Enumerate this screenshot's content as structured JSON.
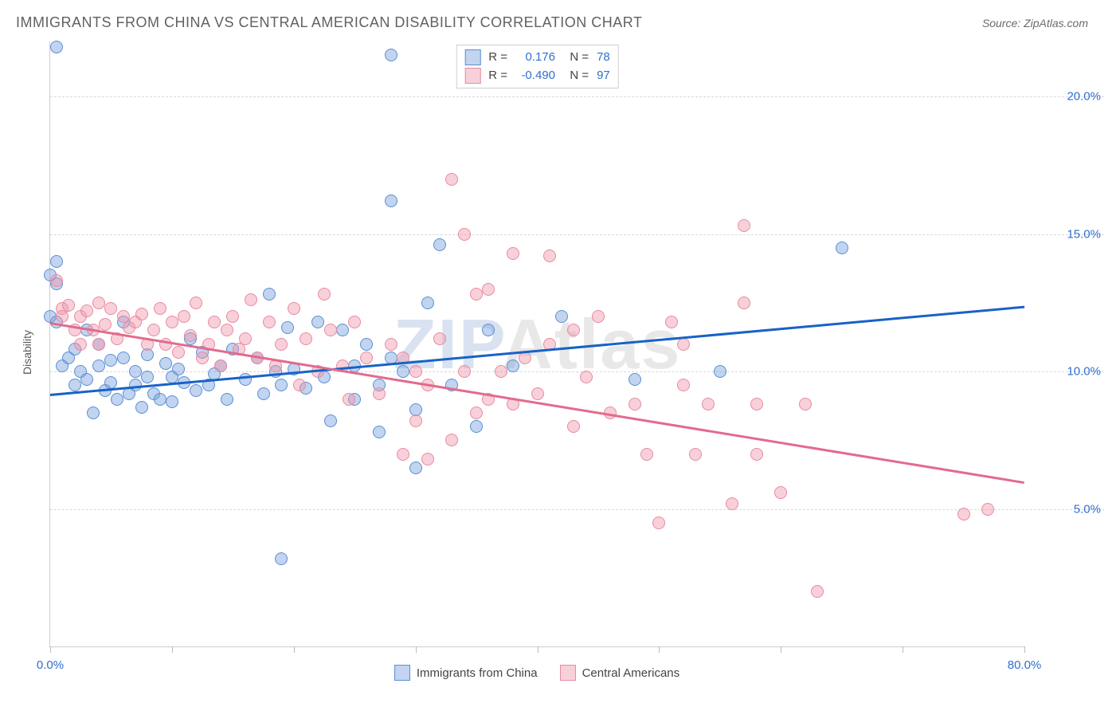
{
  "title": "IMMIGRANTS FROM CHINA VS CENTRAL AMERICAN DISABILITY CORRELATION CHART",
  "source": "Source: ZipAtlas.com",
  "ylabel": "Disability",
  "watermark": {
    "z": "ZIP",
    "rest": "Atlas"
  },
  "chart": {
    "type": "scatter",
    "xlim": [
      0,
      80
    ],
    "ylim": [
      0,
      22
    ],
    "yticks": [
      {
        "v": 5,
        "label": "5.0%"
      },
      {
        "v": 10,
        "label": "10.0%"
      },
      {
        "v": 15,
        "label": "15.0%"
      },
      {
        "v": 20,
        "label": "20.0%"
      }
    ],
    "xtick_positions": [
      0,
      10,
      20,
      30,
      40,
      50,
      60,
      70,
      80
    ],
    "xtick_labels": [
      {
        "v": 0,
        "label": "0.0%"
      },
      {
        "v": 80,
        "label": "80.0%"
      }
    ],
    "xtick_label_color": "#2f6fd0",
    "ytick_label_color": "#2f6fd0",
    "grid_color": "#d9d9d9",
    "background_color": "#ffffff",
    "marker_radius": 8,
    "marker_stroke_width": 1.2,
    "series": [
      {
        "name": "Immigrants from China",
        "color_fill": "rgba(120,160,220,0.45)",
        "color_stroke": "#5a8fd6",
        "trend_color": "#1862c7",
        "trend": {
          "x1": 0,
          "y1": 9.2,
          "x2": 80,
          "y2": 12.4
        },
        "stats": {
          "R": "0.176",
          "N": "78"
        },
        "points": [
          [
            0,
            12.0
          ],
          [
            0,
            13.5
          ],
          [
            0.5,
            13.2
          ],
          [
            0.5,
            11.8
          ],
          [
            0.5,
            21.8
          ],
          [
            28,
            21.5
          ],
          [
            1,
            10.2
          ],
          [
            1.5,
            10.5
          ],
          [
            2,
            9.5
          ],
          [
            2,
            10.8
          ],
          [
            2.5,
            10.0
          ],
          [
            3,
            11.5
          ],
          [
            3,
            9.7
          ],
          [
            3.5,
            8.5
          ],
          [
            4,
            10.2
          ],
          [
            4,
            11.0
          ],
          [
            4.5,
            9.3
          ],
          [
            5,
            9.6
          ],
          [
            5,
            10.4
          ],
          [
            5.5,
            9.0
          ],
          [
            6,
            10.5
          ],
          [
            6,
            11.8
          ],
          [
            6.5,
            9.2
          ],
          [
            7,
            9.5
          ],
          [
            7,
            10.0
          ],
          [
            7.5,
            8.7
          ],
          [
            8,
            9.8
          ],
          [
            8,
            10.6
          ],
          [
            8.5,
            9.2
          ],
          [
            9,
            9.0
          ],
          [
            9.5,
            10.3
          ],
          [
            10,
            9.8
          ],
          [
            10,
            8.9
          ],
          [
            10.5,
            10.1
          ],
          [
            11,
            9.6
          ],
          [
            11.5,
            11.2
          ],
          [
            12,
            9.3
          ],
          [
            12.5,
            10.7
          ],
          [
            13,
            9.5
          ],
          [
            13.5,
            9.9
          ],
          [
            14,
            10.2
          ],
          [
            14.5,
            9.0
          ],
          [
            15,
            10.8
          ],
          [
            16,
            9.7
          ],
          [
            17,
            10.5
          ],
          [
            17.5,
            9.2
          ],
          [
            18,
            12.8
          ],
          [
            18.5,
            10.0
          ],
          [
            19,
            9.5
          ],
          [
            19.5,
            11.6
          ],
          [
            20,
            10.1
          ],
          [
            19,
            3.2
          ],
          [
            21,
            9.4
          ],
          [
            22,
            11.8
          ],
          [
            22.5,
            9.8
          ],
          [
            23,
            8.2
          ],
          [
            24,
            11.5
          ],
          [
            25,
            10.2
          ],
          [
            25,
            9.0
          ],
          [
            26,
            11.0
          ],
          [
            27,
            9.5
          ],
          [
            27,
            7.8
          ],
          [
            28,
            10.5
          ],
          [
            28,
            16.2
          ],
          [
            29,
            10.0
          ],
          [
            30,
            6.5
          ],
          [
            30,
            8.6
          ],
          [
            31,
            12.5
          ],
          [
            32,
            14.6
          ],
          [
            33,
            9.5
          ],
          [
            35,
            8.0
          ],
          [
            36,
            11.5
          ],
          [
            38,
            10.2
          ],
          [
            42,
            12.0
          ],
          [
            48,
            9.7
          ],
          [
            55,
            10.0
          ],
          [
            65,
            14.5
          ],
          [
            0.5,
            14.0
          ]
        ]
      },
      {
        "name": "Central Americans",
        "color_fill": "rgba(240,150,170,0.45)",
        "color_stroke": "#e88aa0",
        "trend_color": "#e26b8d",
        "trend": {
          "x1": 0,
          "y1": 11.8,
          "x2": 80,
          "y2": 6.0
        },
        "stats": {
          "R": "-0.490",
          "N": "97"
        },
        "points": [
          [
            0.5,
            13.3
          ],
          [
            1,
            12.3
          ],
          [
            1,
            12.0
          ],
          [
            1.5,
            12.4
          ],
          [
            2,
            11.5
          ],
          [
            2.5,
            12.0
          ],
          [
            2.5,
            11.0
          ],
          [
            3,
            12.2
          ],
          [
            3.5,
            11.5
          ],
          [
            4,
            12.5
          ],
          [
            4,
            11.0
          ],
          [
            4.5,
            11.7
          ],
          [
            5,
            12.3
          ],
          [
            5.5,
            11.2
          ],
          [
            6,
            12.0
          ],
          [
            6.5,
            11.6
          ],
          [
            7,
            11.8
          ],
          [
            7.5,
            12.1
          ],
          [
            8,
            11.0
          ],
          [
            8.5,
            11.5
          ],
          [
            9,
            12.3
          ],
          [
            9.5,
            11.0
          ],
          [
            10,
            11.8
          ],
          [
            10.5,
            10.7
          ],
          [
            11,
            12.0
          ],
          [
            11.5,
            11.3
          ],
          [
            12,
            12.5
          ],
          [
            12.5,
            10.5
          ],
          [
            13,
            11.0
          ],
          [
            13.5,
            11.8
          ],
          [
            14,
            10.2
          ],
          [
            14.5,
            11.5
          ],
          [
            15,
            12.0
          ],
          [
            15.5,
            10.8
          ],
          [
            16,
            11.2
          ],
          [
            16.5,
            12.6
          ],
          [
            17,
            10.5
          ],
          [
            18,
            11.8
          ],
          [
            18.5,
            10.2
          ],
          [
            19,
            11.0
          ],
          [
            20,
            12.3
          ],
          [
            20.5,
            9.5
          ],
          [
            21,
            11.2
          ],
          [
            22,
            10.0
          ],
          [
            22.5,
            12.8
          ],
          [
            23,
            11.5
          ],
          [
            24,
            10.2
          ],
          [
            24.5,
            9.0
          ],
          [
            25,
            11.8
          ],
          [
            26,
            10.5
          ],
          [
            27,
            9.2
          ],
          [
            28,
            11.0
          ],
          [
            29,
            7.0
          ],
          [
            29,
            10.5
          ],
          [
            30,
            8.2
          ],
          [
            30,
            10.0
          ],
          [
            31,
            6.8
          ],
          [
            31,
            9.5
          ],
          [
            32,
            11.2
          ],
          [
            33,
            17.0
          ],
          [
            33,
            7.5
          ],
          [
            34,
            10.0
          ],
          [
            34,
            15.0
          ],
          [
            35,
            12.8
          ],
          [
            35,
            8.5
          ],
          [
            36,
            13.0
          ],
          [
            37,
            10.0
          ],
          [
            38,
            8.8
          ],
          [
            38,
            14.3
          ],
          [
            39,
            10.5
          ],
          [
            40,
            9.2
          ],
          [
            41,
            14.2
          ],
          [
            41,
            11.0
          ],
          [
            43,
            8.0
          ],
          [
            43,
            11.5
          ],
          [
            44,
            9.8
          ],
          [
            45,
            12.0
          ],
          [
            46,
            8.5
          ],
          [
            48,
            8.8
          ],
          [
            49,
            7.0
          ],
          [
            50,
            4.5
          ],
          [
            51,
            11.8
          ],
          [
            52,
            11.0
          ],
          [
            53,
            7.0
          ],
          [
            54,
            8.8
          ],
          [
            56,
            5.2
          ],
          [
            57,
            15.3
          ],
          [
            57,
            12.5
          ],
          [
            58,
            8.8
          ],
          [
            58,
            7.0
          ],
          [
            60,
            5.6
          ],
          [
            62,
            8.8
          ],
          [
            63,
            2.0
          ],
          [
            75,
            4.8
          ],
          [
            77,
            5.0
          ],
          [
            52,
            9.5
          ],
          [
            36,
            9.0
          ]
        ]
      }
    ],
    "stats_box": {
      "label_R": "R =",
      "label_N": "N ="
    },
    "legend_bottom": [
      {
        "label": "Immigrants from China",
        "series": 0
      },
      {
        "label": "Central Americans",
        "series": 1
      }
    ]
  }
}
